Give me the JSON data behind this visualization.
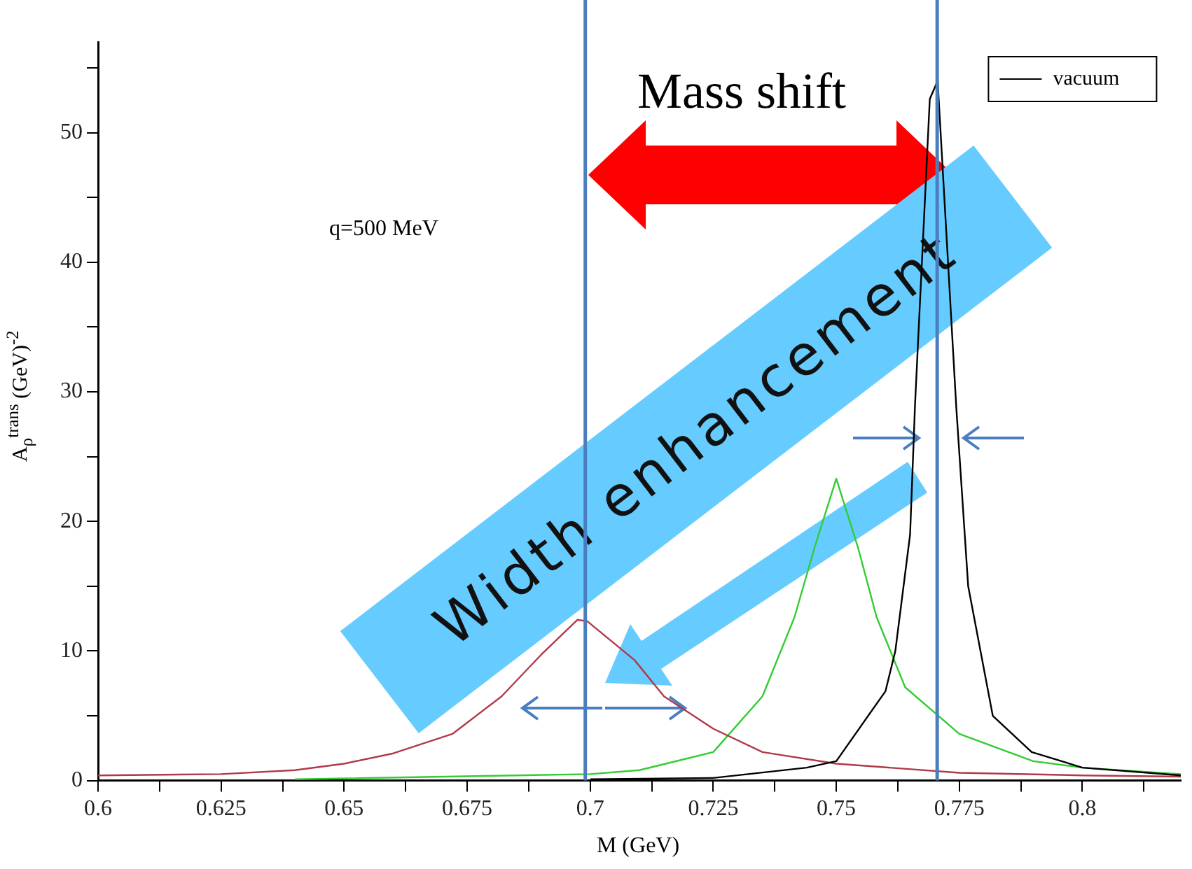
{
  "chart_data": {
    "type": "line",
    "xlabel": "M (GeV)",
    "ylabel": "A$_{ρ}$$^{trans}$ (GeV)$^{-2}$",
    "annotations": [
      "q=500 MeV",
      "Mass shift",
      "Width enhancement"
    ],
    "xlim": [
      0.6,
      0.82
    ],
    "ylim": [
      0,
      57
    ],
    "xticks": [
      0.6,
      {
        "value": 0.6125,
        "label": null
      },
      0.625,
      {
        "value": 0.6375,
        "label": null
      },
      0.65,
      {
        "value": 0.6625,
        "label": null
      },
      0.675,
      {
        "value": 0.6875,
        "label": null
      },
      0.7,
      {
        "value": 0.7125,
        "label": null
      },
      0.725,
      {
        "value": 0.7375,
        "label": null
      },
      0.75,
      {
        "value": 0.7625,
        "label": null
      },
      0.775,
      {
        "value": 0.7875,
        "label": null
      },
      0.8,
      {
        "value": 0.8125,
        "label": null
      }
    ],
    "yticks": [
      0,
      {
        "value": 5,
        "label": null
      },
      10,
      {
        "value": 15,
        "label": null
      },
      20,
      {
        "value": 25,
        "label": null
      },
      30,
      {
        "value": 35,
        "label": null
      },
      40,
      {
        "value": 45,
        "label": null
      },
      50,
      {
        "value": 55,
        "label": null
      }
    ],
    "grid": false,
    "legend": "top right",
    "marker": "none",
    "line_style": "solid",
    "ref_lines": [
      {
        "axis": "x",
        "value": 0.699,
        "label": null,
        "color": "#4a7ebf"
      },
      {
        "axis": "x",
        "value": 0.7705,
        "label": null,
        "color": "#4a7ebf"
      }
    ],
    "series": [
      {
        "name": "vacuum",
        "color": "#000000",
        "x": [
          0.7,
          0.725,
          0.744,
          0.75,
          0.76,
          0.762,
          0.765,
          0.766,
          0.769,
          0.7706,
          0.7744,
          0.7768,
          0.7818,
          0.7897,
          0.8,
          0.82
        ],
        "values": [
          0.1,
          0.2,
          1.0,
          1.5,
          6.9,
          10,
          19,
          29,
          52.6,
          54,
          28.7,
          15,
          5,
          2.2,
          1.0,
          0.4
        ]
      },
      {
        "color": "#b03a48",
        "x": [
          0.6,
          0.625,
          0.64,
          0.65,
          0.66,
          0.672,
          0.682,
          0.69,
          0.6974,
          0.6994,
          0.709,
          0.715,
          0.725,
          0.735,
          0.75,
          0.775,
          0.8,
          0.82
        ],
        "values": [
          0.4,
          0.5,
          0.8,
          1.3,
          2.1,
          3.6,
          6.5,
          9.7,
          12.4,
          12.3,
          9.3,
          6.5,
          4.0,
          2.2,
          1.3,
          0.6,
          0.4,
          0.3
        ]
      },
      {
        "color": "#33cc33",
        "x": [
          0.64,
          0.7,
          0.71,
          0.725,
          0.735,
          0.7415,
          0.7456,
          0.75,
          0.7544,
          0.7582,
          0.764,
          0.775,
          0.79,
          0.8,
          0.82
        ],
        "values": [
          0.1,
          0.5,
          0.8,
          2.2,
          6.5,
          12.6,
          18,
          23.3,
          18,
          12.6,
          7.2,
          3.6,
          1.5,
          1.0,
          0.5
        ]
      }
    ]
  }
}
